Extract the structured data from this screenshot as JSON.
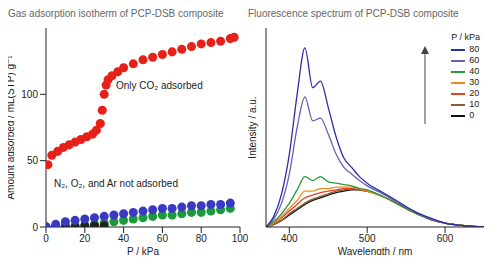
{
  "chart_data": [
    {
      "type": "scatter",
      "title": "Gas adsorption isotherm of PCP-DSB composite",
      "x_label": "P / kPa",
      "y_label": "Amount adsorbed / mL(STP) g⁻¹",
      "annotations": [
        "Only CO₂ adsorbed",
        "N₂, O₂, and Ar not adsorbed"
      ],
      "xlim": [
        0,
        100
      ],
      "xticks": [
        0,
        20,
        40,
        60,
        80,
        100
      ],
      "ylim": [
        0,
        150
      ],
      "yticks": [
        0,
        50,
        100
      ],
      "series": [
        {
          "color": "#e8201a",
          "marker": "circle",
          "x": [
            0,
            1,
            3,
            6,
            9,
            12,
            15,
            18,
            21,
            24,
            26,
            28,
            29,
            30,
            31,
            32,
            34,
            37,
            40,
            45,
            50,
            55,
            60,
            65,
            70,
            75,
            80,
            85,
            90,
            95,
            97
          ],
          "values": [
            0,
            47,
            54,
            57,
            60,
            62,
            64,
            66,
            68,
            70,
            73,
            78,
            88,
            100,
            107,
            111,
            114,
            117,
            120,
            123,
            126,
            128,
            130,
            132,
            134,
            136,
            138,
            139,
            140,
            142,
            143
          ]
        },
        {
          "color": "#1a9a3a",
          "marker": "circle",
          "x": [
            0,
            5,
            10,
            15,
            20,
            25,
            30,
            35,
            40,
            45,
            50,
            55,
            60,
            65,
            70,
            75,
            80,
            85,
            90,
            95
          ],
          "values": [
            0,
            0,
            1,
            1,
            1,
            2,
            3,
            4,
            5,
            6,
            7,
            8,
            9,
            9,
            10,
            11,
            11,
            12,
            13,
            14
          ]
        },
        {
          "color": "#222222",
          "marker": "circle",
          "x": [
            0,
            5,
            10,
            15,
            20,
            25,
            30
          ],
          "values": [
            0,
            0,
            0,
            0,
            1,
            1,
            1
          ]
        },
        {
          "color": "#3a3ac0",
          "marker": "circle",
          "x": [
            0,
            5,
            10,
            15,
            20,
            25,
            30,
            35,
            40,
            45,
            50,
            55,
            60,
            65,
            70,
            75,
            80,
            85,
            90,
            95
          ],
          "values": [
            0,
            2,
            4,
            5,
            6,
            7,
            8,
            9,
            10,
            11,
            12,
            13,
            14,
            14,
            15,
            16,
            16,
            17,
            17,
            18
          ]
        }
      ]
    },
    {
      "type": "line",
      "title": "Fluorescence spectrum of PCP-DSB composite",
      "x_label": "Wavelength / nm",
      "y_label": "Intensity / a.u.",
      "legend_title": "P / kPa",
      "legend": "upper right",
      "tick_labels": "x",
      "xlim": [
        370,
        650
      ],
      "xticks": [
        400,
        500,
        600
      ],
      "ylim": [
        0,
        150
      ],
      "x": [
        370,
        380,
        390,
        400,
        410,
        420,
        430,
        440,
        450,
        460,
        470,
        480,
        490,
        500,
        520,
        540,
        560,
        580,
        600,
        625,
        650
      ],
      "series": [
        {
          "name": "80",
          "color": "#2b2fa8",
          "values": [
            0,
            8,
            25,
            55,
            100,
            135,
            105,
            110,
            90,
            68,
            52,
            45,
            38,
            33,
            26,
            19,
            12,
            7,
            3,
            1,
            0
          ]
        },
        {
          "name": "60",
          "color": "#6a5fb0",
          "values": [
            0,
            6,
            18,
            40,
            75,
            98,
            80,
            82,
            70,
            55,
            45,
            40,
            35,
            31,
            25,
            18,
            12,
            6,
            3,
            1,
            0
          ]
        },
        {
          "name": "40",
          "color": "#2a9a3a",
          "values": [
            0,
            4,
            10,
            18,
            28,
            38,
            35,
            38,
            34,
            33,
            32,
            31,
            29,
            28,
            23,
            17,
            11,
            6,
            3,
            1,
            0
          ]
        },
        {
          "name": "30",
          "color": "#f08a1a",
          "values": [
            0,
            3,
            8,
            14,
            20,
            27,
            27,
            29,
            29,
            30,
            30,
            30,
            29,
            27,
            23,
            17,
            11,
            6,
            3,
            1,
            0
          ]
        },
        {
          "name": "20",
          "color": "#e8401a",
          "values": [
            0,
            3,
            7,
            12,
            17,
            22,
            24,
            26,
            27,
            28,
            29,
            29,
            28,
            27,
            23,
            17,
            11,
            6,
            3,
            1,
            0
          ]
        },
        {
          "name": "10",
          "color": "#8a5a30",
          "values": [
            0,
            2,
            5,
            10,
            14,
            18,
            21,
            23,
            25,
            27,
            28,
            29,
            28,
            27,
            23,
            17,
            11,
            6,
            3,
            1,
            0
          ]
        },
        {
          "name": "0",
          "color": "#111111",
          "values": [
            0,
            2,
            5,
            9,
            13,
            17,
            20,
            22,
            24,
            26,
            27,
            28,
            28,
            27,
            23,
            17,
            11,
            6,
            3,
            1,
            0
          ]
        }
      ]
    }
  ]
}
